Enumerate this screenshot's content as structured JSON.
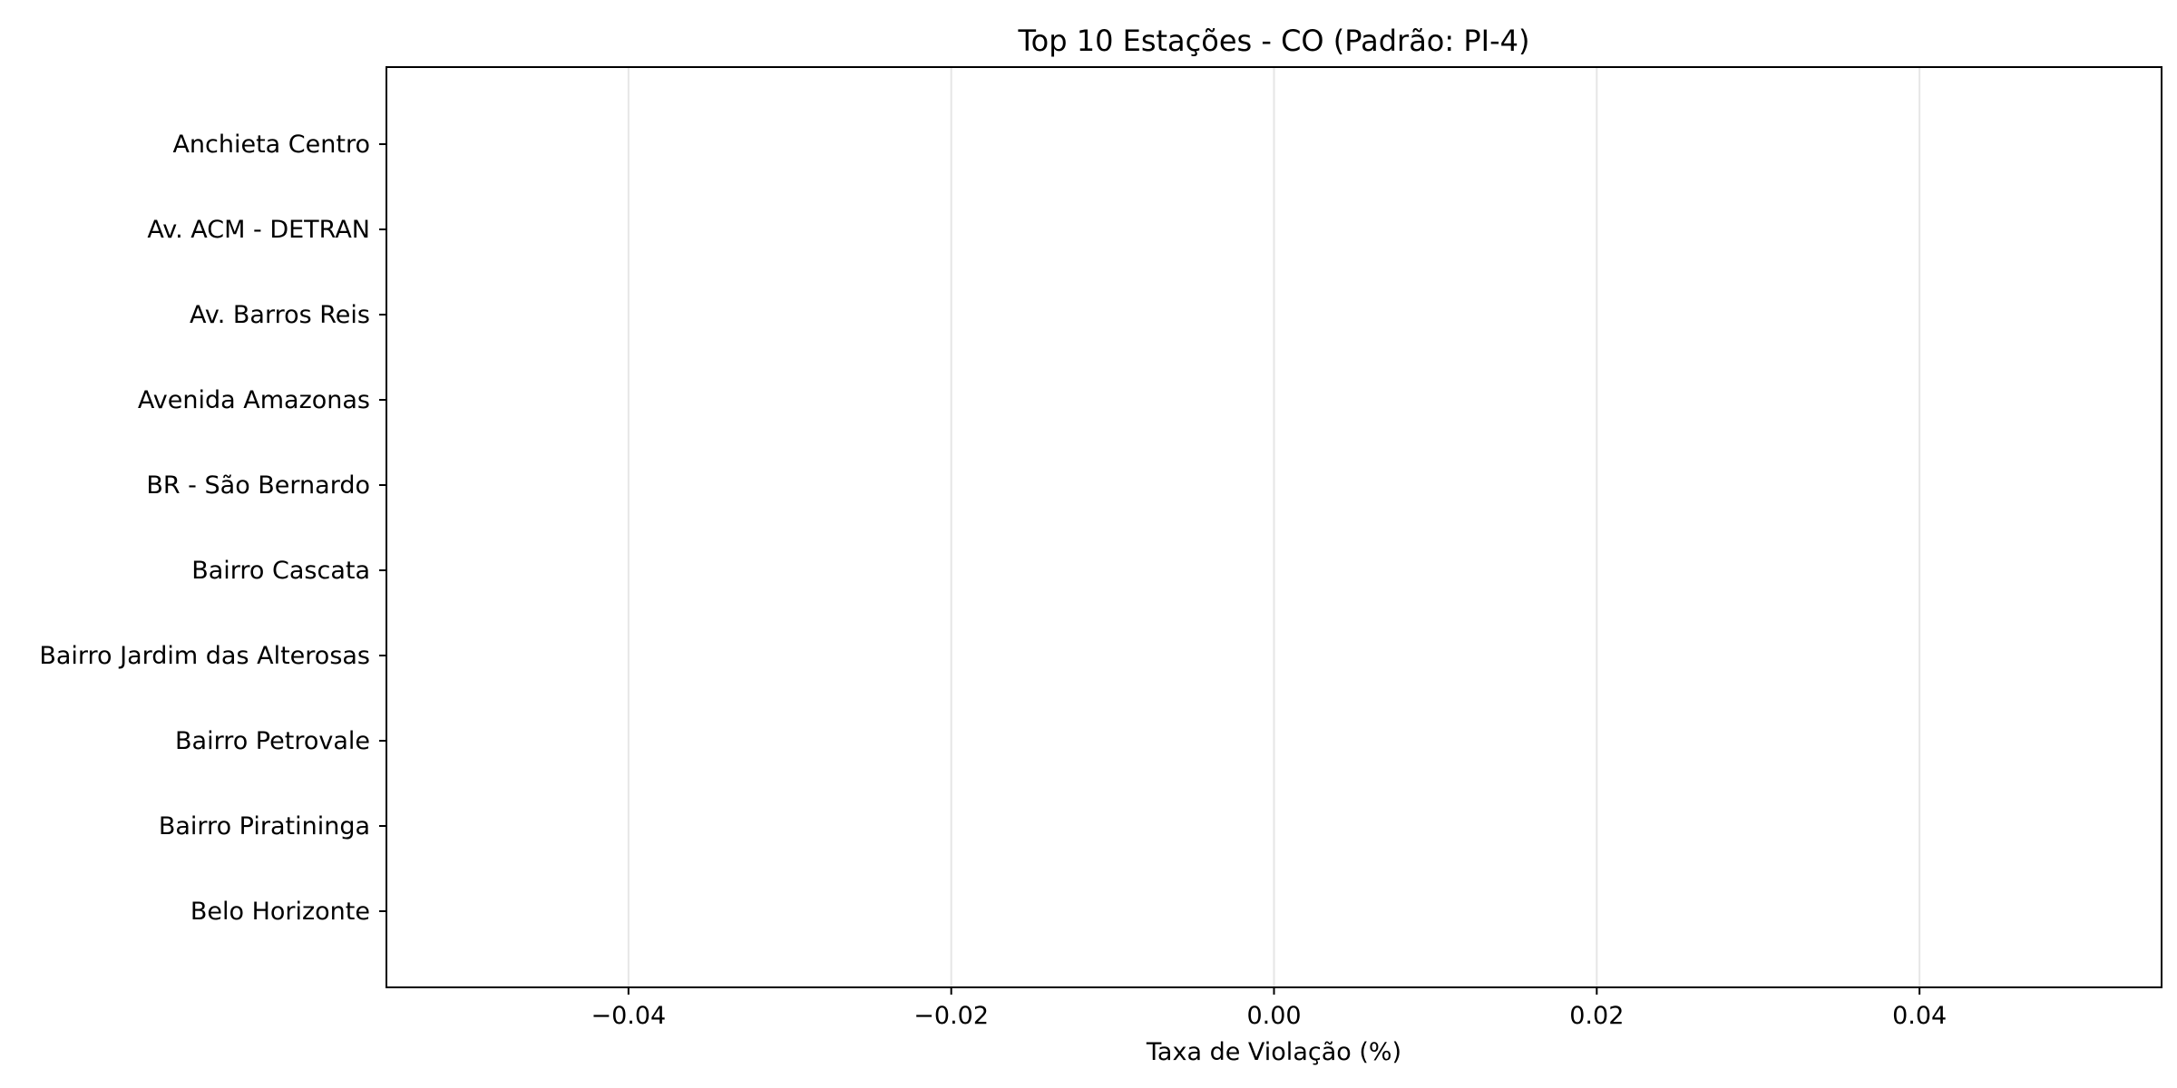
{
  "chart_data": {
    "type": "bar",
    "orientation": "horizontal",
    "title": "Top 10 Estações - CO (Padrão: PI-4)",
    "xlabel": "Taxa de Violação (%)",
    "ylabel": "",
    "categories": [
      "Anchieta Centro",
      "Av. ACM - DETRAN",
      "Av. Barros Reis",
      "Avenida Amazonas",
      "BR - São Bernardo",
      "Bairro Cascata",
      "Bairro Jardim das Alterosas",
      "Bairro Petrovale",
      "Bairro Piratininga",
      "Belo Horizonte"
    ],
    "values": [
      0,
      0,
      0,
      0,
      0,
      0,
      0,
      0,
      0,
      0
    ],
    "xlim": [
      -0.055,
      0.055
    ],
    "xticks": [
      -0.04,
      -0.02,
      0.0,
      0.02,
      0.04
    ],
    "xtick_labels": [
      "−0.04",
      "−0.02",
      "0.00",
      "0.02",
      "0.04"
    ],
    "grid": "x",
    "colors": {
      "grid": "#e6e6e6",
      "axis": "#000000",
      "text": "#000000"
    }
  }
}
